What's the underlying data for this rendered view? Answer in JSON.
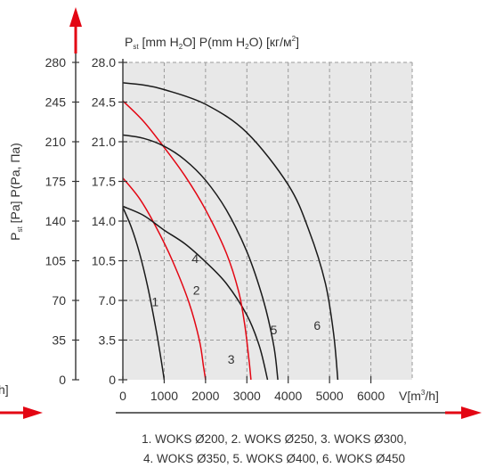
{
  "chart_data": {
    "type": "line",
    "title_left": "P",
    "title_left_sub": "st",
    "title_mid": " [mm H",
    "title_mid_sub": "2",
    "title_mid2": "O] P(mm H",
    "title_mid2_sub": "2",
    "title_mid3": "O) [кг/м",
    "title_mid3_sup": "2",
    "title_end": "]",
    "ylabel_p": "P",
    "ylabel_sub": "st",
    "ylabel_rest": " [Pa] P(Pa, Па)",
    "xlabel_main": "V[m",
    "xlabel_sup": "3",
    "xlabel_end": "/h]",
    "left_partial_label": "h]",
    "x_ticks": [
      "0",
      "1000",
      "2000",
      "3000",
      "4000",
      "5000",
      "6000"
    ],
    "x_tick_values": [
      0,
      1000,
      2000,
      3000,
      4000,
      5000,
      6000
    ],
    "y_ticks_pa": [
      "0",
      "35",
      "70",
      "105",
      "140",
      "175",
      "210",
      "245",
      "280"
    ],
    "y_ticks_mm": [
      "0",
      "3.5",
      "7.0",
      "10.5",
      "14.0",
      "17.5",
      "21.0",
      "24.5",
      "28.0"
    ],
    "y_tick_values": [
      0,
      35,
      70,
      105,
      140,
      175,
      210,
      245,
      280
    ],
    "xlim": [
      0,
      7000
    ],
    "ylim": [
      0,
      280
    ],
    "grid": true,
    "series": [
      {
        "label": "1",
        "color": "#1a1a1a",
        "x": [
          0,
          200,
          400,
          600,
          800,
          950,
          1000
        ],
        "y": [
          152,
          135,
          112,
          82,
          45,
          12,
          0
        ]
      },
      {
        "label": "2",
        "color": "#e30613",
        "x": [
          0,
          400,
          800,
          1200,
          1600,
          1850,
          1950,
          2000
        ],
        "y": [
          178,
          160,
          135,
          105,
          68,
          35,
          12,
          0
        ]
      },
      {
        "label": "3",
        "color": "#1a1a1a",
        "x": [
          0,
          500,
          1000,
          1500,
          2000,
          2500,
          3000,
          3300,
          3500
        ],
        "y": [
          153,
          145,
          132,
          120,
          104,
          85,
          57,
          30,
          0
        ]
      },
      {
        "label": "4",
        "color": "#e30613",
        "x": [
          0,
          500,
          1000,
          1500,
          2000,
          2500,
          2800,
          2950,
          3050,
          3100
        ],
        "y": [
          246,
          228,
          205,
          180,
          150,
          112,
          78,
          48,
          18,
          0
        ]
      },
      {
        "label": "5",
        "color": "#1a1a1a",
        "x": [
          0,
          500,
          1000,
          1500,
          2000,
          2500,
          3000,
          3400,
          3650,
          3750
        ],
        "y": [
          216,
          213,
          206,
          194,
          176,
          150,
          113,
          70,
          30,
          0
        ]
      },
      {
        "label": "6",
        "color": "#1a1a1a",
        "x": [
          0,
          500,
          1000,
          2000,
          3000,
          4000,
          4500,
          4900,
          5100,
          5200
        ],
        "y": [
          262,
          260,
          256,
          243,
          218,
          172,
          132,
          85,
          40,
          0
        ]
      }
    ],
    "curve_labels": [
      {
        "text": "1",
        "x": 780,
        "y": 65
      },
      {
        "text": "2",
        "x": 1780,
        "y": 75
      },
      {
        "text": "3",
        "x": 2620,
        "y": 14
      },
      {
        "text": "4",
        "x": 1750,
        "y": 103
      },
      {
        "text": "5",
        "x": 3650,
        "y": 40
      },
      {
        "text": "6",
        "x": 4700,
        "y": 44
      }
    ]
  },
  "legend": {
    "line1": "1. WOKS Ø200, 2. WOKS Ø250, 3. WOKS Ø300,",
    "line2": "4. WOKS Ø350, 5. WOKS Ø400, 6. WOKS Ø450"
  }
}
